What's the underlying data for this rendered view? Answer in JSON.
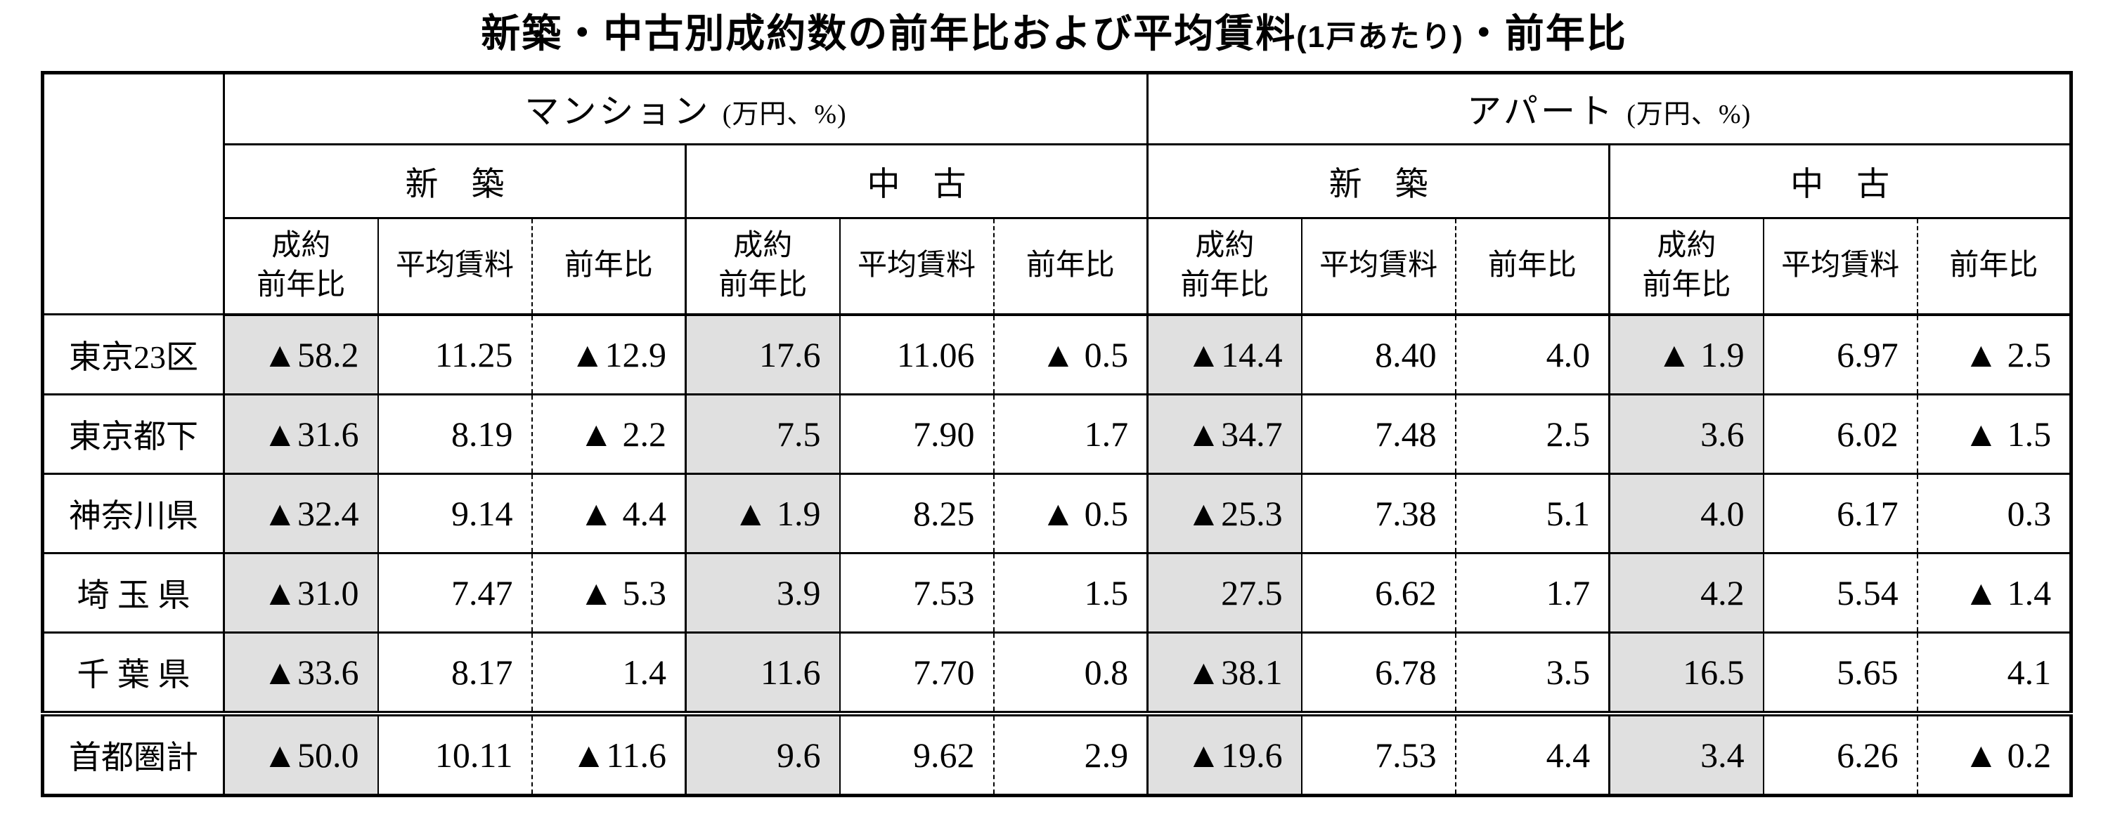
{
  "title": {
    "main": "新築・中古別成約数の前年比および平均賃料",
    "unit_note": "(1戸あたり)",
    "tail": "・前年比"
  },
  "colors": {
    "shaded_cell": "#e0e0e0",
    "border": "#000000",
    "background": "#ffffff"
  },
  "table": {
    "groups": [
      {
        "label": "マンション",
        "unit": "(万円、%)"
      },
      {
        "label": "アパート",
        "unit": "(万円、%)"
      }
    ],
    "subgroups": [
      "新　築",
      "中　古"
    ],
    "col_headers": [
      "成約\n前年比",
      "平均賃料",
      "前年比"
    ],
    "rows": [
      {
        "label": "東京23区",
        "values": [
          "▲58.2",
          "11.25",
          "▲12.9",
          "17.6",
          "11.06",
          "▲ 0.5",
          "▲14.4",
          "8.40",
          "4.0",
          "▲ 1.9",
          "6.97",
          "▲ 2.5"
        ]
      },
      {
        "label": "東京都下",
        "values": [
          "▲31.6",
          "8.19",
          "▲ 2.2",
          "7.5",
          "7.90",
          "1.7",
          "▲34.7",
          "7.48",
          "2.5",
          "3.6",
          "6.02",
          "▲ 1.5"
        ]
      },
      {
        "label": "神奈川県",
        "values": [
          "▲32.4",
          "9.14",
          "▲ 4.4",
          "▲ 1.9",
          "8.25",
          "▲ 0.5",
          "▲25.3",
          "7.38",
          "5.1",
          "4.0",
          "6.17",
          "0.3"
        ]
      },
      {
        "label": "埼 玉 県",
        "values": [
          "▲31.0",
          "7.47",
          "▲ 5.3",
          "3.9",
          "7.53",
          "1.5",
          "27.5",
          "6.62",
          "1.7",
          "4.2",
          "5.54",
          "▲ 1.4"
        ]
      },
      {
        "label": "千 葉 県",
        "values": [
          "▲33.6",
          "8.17",
          "1.4",
          "11.6",
          "7.70",
          "0.8",
          "▲38.1",
          "6.78",
          "3.5",
          "16.5",
          "5.65",
          "4.1"
        ]
      },
      {
        "label": "首都圏計",
        "values": [
          "▲50.0",
          "10.11",
          "▲11.6",
          "9.6",
          "9.62",
          "2.9",
          "▲19.6",
          "7.53",
          "4.4",
          "3.4",
          "6.26",
          "▲ 0.2"
        ]
      }
    ],
    "total_row_index": 5,
    "shaded_value_columns": [
      0,
      3,
      6,
      9
    ]
  }
}
